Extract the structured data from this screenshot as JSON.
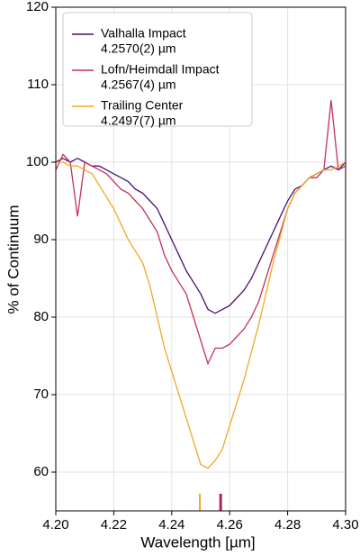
{
  "chart_data": {
    "type": "line",
    "xlabel": "Wavelength [µm]",
    "ylabel": "% of Continuum",
    "x": [
      4.2,
      4.2025,
      4.205,
      4.2075,
      4.21,
      4.2125,
      4.215,
      4.2175,
      4.22,
      4.2225,
      4.225,
      4.2275,
      4.23,
      4.2325,
      4.235,
      4.2375,
      4.24,
      4.2425,
      4.245,
      4.2475,
      4.25,
      4.2525,
      4.255,
      4.2575,
      4.26,
      4.2625,
      4.265,
      4.2675,
      4.27,
      4.2725,
      4.275,
      4.2775,
      4.28,
      4.2825,
      4.285,
      4.2875,
      4.29,
      4.2925,
      4.295,
      4.2975,
      4.3
    ],
    "series": [
      {
        "name": "Valhalla Impact",
        "center_label": "4.2570(2) µm",
        "center": 4.257,
        "color": "#4b0f6e",
        "values": [
          100,
          100.5,
          100,
          100.5,
          100,
          99.5,
          99.5,
          99,
          98.5,
          98,
          97.5,
          96.5,
          96,
          95,
          94,
          92,
          90,
          88,
          86,
          84.5,
          83,
          81,
          80.5,
          81,
          81.5,
          82.5,
          83.5,
          85,
          87,
          89,
          91,
          93,
          95,
          96.5,
          97,
          98,
          98.5,
          99,
          99.5,
          99,
          100
        ]
      },
      {
        "name": "Lofn/Heimdall Impact",
        "center_label": "4.2567(4) µm",
        "center": 4.2567,
        "color": "#c1325e",
        "values": [
          99,
          101,
          100,
          93,
          100,
          99.5,
          99,
          98.5,
          97.5,
          96.5,
          96,
          95,
          94,
          92.5,
          91,
          88,
          86,
          84.5,
          83,
          80,
          77,
          74,
          76,
          76,
          76.5,
          77.5,
          78.5,
          80,
          82,
          85,
          88,
          91,
          94,
          96,
          97,
          98,
          98,
          99,
          108,
          99,
          99.5
        ]
      },
      {
        "name": "Trailing Center",
        "center_label": "4.2497(7) µm",
        "center": 4.2497,
        "color": "#f5a623",
        "values": [
          100,
          100,
          99.5,
          99.5,
          99,
          98.5,
          97,
          95.5,
          94,
          92,
          90,
          88.5,
          87,
          84,
          80,
          76,
          73,
          70,
          67,
          64,
          61,
          60.5,
          61.5,
          63,
          66,
          69,
          72,
          75.5,
          79,
          83,
          87,
          90.5,
          94,
          96,
          97,
          98,
          98.5,
          99,
          99,
          99.5,
          100
        ]
      }
    ],
    "xlim": [
      4.2,
      4.3
    ],
    "ylim": [
      55,
      120
    ],
    "xticks": [
      {
        "value": 4.2,
        "label": "4.20"
      },
      {
        "value": 4.22,
        "label": "4.22"
      },
      {
        "value": 4.24,
        "label": "4.24"
      },
      {
        "value": 4.26,
        "label": "4.26"
      },
      {
        "value": 4.28,
        "label": "4.28"
      },
      {
        "value": 4.3,
        "label": "4.30"
      }
    ],
    "yticks": [
      60,
      70,
      80,
      90,
      100,
      110,
      120
    ],
    "grid": true,
    "legend": "upper left"
  }
}
